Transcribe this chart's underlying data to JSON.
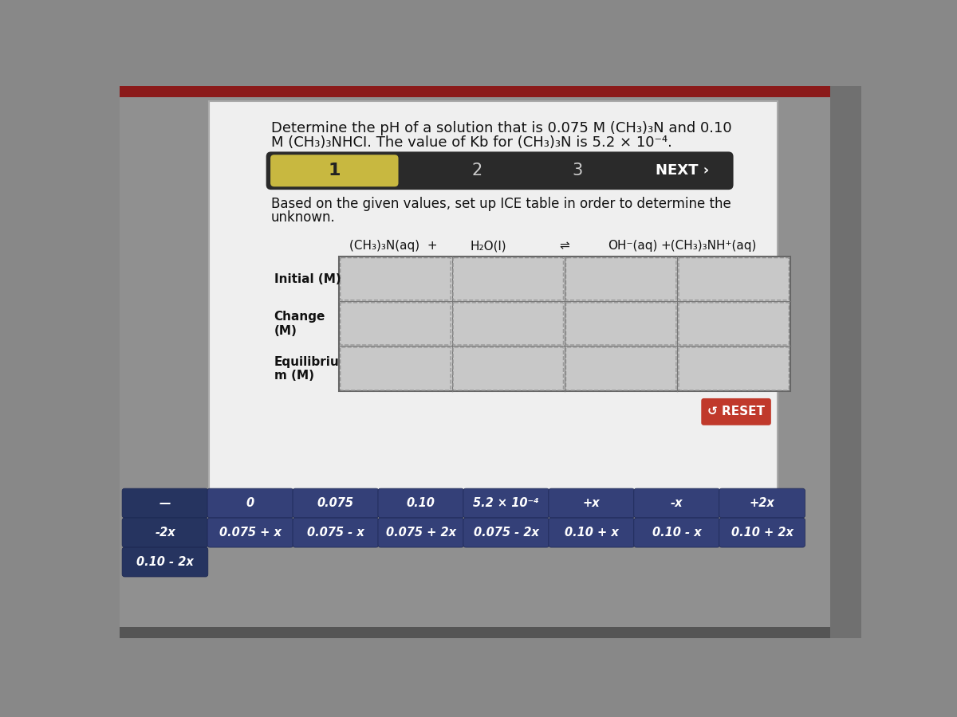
{
  "title_text1": "Determine the pH of a solution that is 0.075 M (CH₃)₃N and 0.10",
  "title_text2": "M (CH₃)₃NHCI. The value of Kb for (CH₃)₃N is 5.2 × 10⁻⁴.",
  "instruction_text1": "Based on the given values, set up ICE table in order to determine the",
  "instruction_text2": "unknown.",
  "nav_bg": "#2a2a2a",
  "nav_highlight_color": "#c8b840",
  "step1": "1",
  "step2": "2",
  "step3": "3",
  "next_text": "NEXT ›",
  "equation_parts": [
    "(CH₃)₃N(aq)  +",
    "H₂O(l)",
    "⇌",
    "OH⁻(aq)",
    "+(CH₃)₃NH⁺(aq)"
  ],
  "row_labels": [
    "Initial (M)",
    "Change\n(M)",
    "Equilibriu\nm (M)"
  ],
  "table_bg": "#d0d0d0",
  "table_line_color": "#777777",
  "cell_bg": "#c8c8c8",
  "cell_border_color": "#999999",
  "reset_btn_color": "#c0392b",
  "reset_text": "↺ RESET",
  "answer_buttons_row1": [
    "—",
    "0",
    "0.075",
    "0.10",
    "5.2 × 10⁻⁴",
    "+x",
    "-x",
    "+2x"
  ],
  "answer_buttons_row2": [
    "-2x",
    "0.075 + x",
    "0.075 - x",
    "0.075 + 2x",
    "0.075 - 2x",
    "0.10 + x",
    "0.10 - x",
    "0.10 + 2x"
  ],
  "answer_buttons_row3": [
    "0.10 - 2x"
  ],
  "btn_color_dark": "#263460",
  "btn_color_medium": "#344078",
  "btn_text_color": "#ffffff",
  "content_bg": "#e8e8e8",
  "outer_bg": "#888888",
  "panel_bg": "#d8d8d8"
}
